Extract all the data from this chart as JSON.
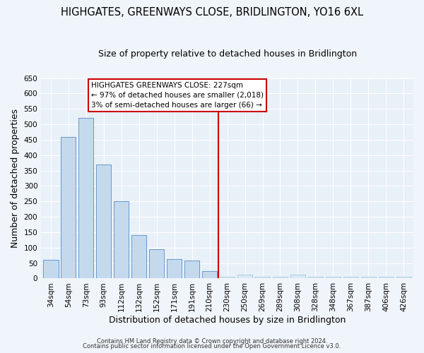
{
  "title": "HIGHGATES, GREENWAYS CLOSE, BRIDLINGTON, YO16 6XL",
  "subtitle": "Size of property relative to detached houses in Bridlington",
  "xlabel": "Distribution of detached houses by size in Bridlington",
  "ylabel": "Number of detached properties",
  "categories": [
    "34sqm",
    "54sqm",
    "73sqm",
    "93sqm",
    "112sqm",
    "132sqm",
    "152sqm",
    "171sqm",
    "191sqm",
    "210sqm",
    "230sqm",
    "250sqm",
    "269sqm",
    "289sqm",
    "308sqm",
    "328sqm",
    "348sqm",
    "367sqm",
    "387sqm",
    "406sqm",
    "426sqm"
  ],
  "values": [
    60,
    458,
    520,
    370,
    250,
    140,
    95,
    62,
    58,
    25,
    5,
    12,
    5,
    5,
    12,
    5,
    5,
    5,
    5,
    5,
    5
  ],
  "bar_color_left": "#c5d9ed",
  "bar_color_right": "#daeaf5",
  "bar_edge_left": "#6699cc",
  "bar_edge_right": "#aaccdd",
  "vline_x_index": 10,
  "vline_color": "#cc0000",
  "annotation_title": "HIGHGATES GREENWAYS CLOSE: 227sqm",
  "annotation_line1": "← 97% of detached houses are smaller (2,018)",
  "annotation_line2": "3% of semi-detached houses are larger (66) →",
  "annotation_box_color": "#ffffff",
  "annotation_border_color": "#cc0000",
  "footer1": "Contains HM Land Registry data © Crown copyright and database right 2024.",
  "footer2": "Contains public sector information licensed under the Open Government Licence v3.0.",
  "bg_color": "#f0f5fb",
  "plot_bg_color": "#e8f0f8",
  "grid_color": "#ffffff",
  "ylim": [
    0,
    650
  ],
  "yticks": [
    0,
    50,
    100,
    150,
    200,
    250,
    300,
    350,
    400,
    450,
    500,
    550,
    600,
    650
  ],
  "title_fontsize": 10.5,
  "subtitle_fontsize": 9,
  "tick_fontsize": 7.5,
  "axis_label_fontsize": 9
}
